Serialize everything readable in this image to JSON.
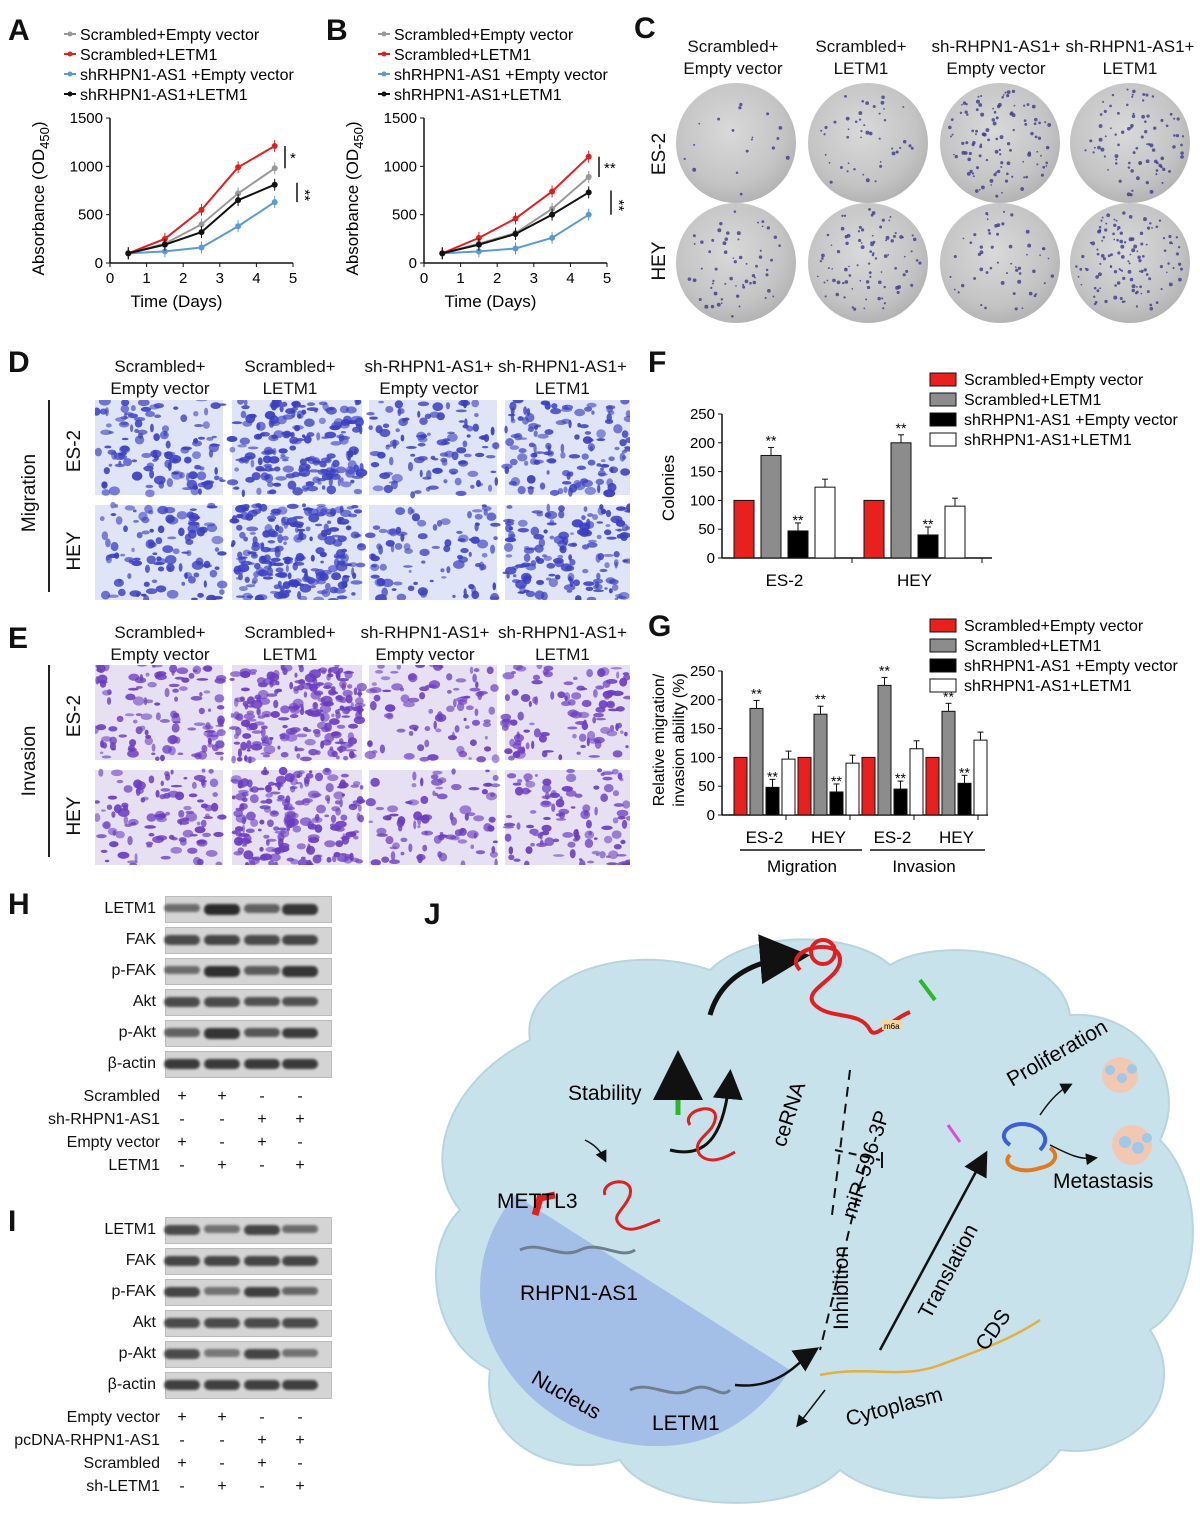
{
  "panel_labels": {
    "A": "A",
    "B": "B",
    "C": "C",
    "D": "D",
    "E": "E",
    "F": "F",
    "G": "G",
    "H": "H",
    "I": "I",
    "J": "J"
  },
  "groups": [
    "Scrambled+Empty vector",
    "Scrambled+LETM1",
    "shRHPN1-AS1 +Empty vector",
    "shRHPN1-AS1+LETM1"
  ],
  "colors": {
    "g1": "#e8201e",
    "g2": "#8c8c8c",
    "g3": "#000000",
    "g4": "#ffffff",
    "line1": "#999999",
    "line2": "#e02020",
    "line3": "#5b9bd5",
    "line4": "#111111"
  },
  "col_headers_C": [
    [
      "Scrambled+",
      "Empty vector"
    ],
    [
      "Scrambled+",
      "LETM1"
    ],
    [
      "sh-RHPN1-AS1+",
      "Empty vector"
    ],
    [
      "sh-RHPN1-AS1+",
      "LETM1"
    ]
  ],
  "col_headers_D": [
    [
      "Scrambled+",
      "Empty vector"
    ],
    [
      "Scrambled+",
      "LETM1"
    ],
    [
      "sh-RHPN1-AS1+",
      "Empty vector"
    ],
    [
      "sh-RHPN1-AS1+",
      "LETM1"
    ]
  ],
  "col_headers_E": [
    [
      "Scrambled+",
      "Empty vector"
    ],
    [
      "Scrambled+",
      "LETM1"
    ],
    [
      "sh-RHPN1-AS1+",
      "Empty vector"
    ],
    [
      "sh-RHPN1-AS1+",
      "LETM1"
    ]
  ],
  "row_labels": {
    "es2": "ES-2",
    "hey": "HEY",
    "migration": "Migration",
    "invasion": "Invasion"
  },
  "chart_data": [
    {
      "panel": "A",
      "type": "line",
      "xlabel": "Time (Days)",
      "ylabel": "Absorbance (OD450)",
      "xlim": [
        0,
        5
      ],
      "ylim": [
        0,
        1500
      ],
      "xticks": [
        0,
        1,
        2,
        3,
        4,
        5
      ],
      "yticks": [
        0,
        500,
        1000,
        1500
      ],
      "x": [
        0.5,
        1.5,
        2.5,
        3.5,
        4.5
      ],
      "series": [
        {
          "name": "Scrambled+Empty vector",
          "values": [
            100,
            200,
            400,
            720,
            980
          ]
        },
        {
          "name": "Scrambled+LETM1",
          "values": [
            100,
            250,
            550,
            990,
            1210
          ]
        },
        {
          "name": "shRHPN1-AS1 +Empty vector",
          "values": [
            100,
            120,
            160,
            380,
            630
          ]
        },
        {
          "name": "shRHPN1-AS1+LETM1",
          "values": [
            100,
            190,
            320,
            650,
            810
          ]
        }
      ],
      "significance": [
        "*",
        "**"
      ]
    },
    {
      "panel": "B",
      "type": "line",
      "xlabel": "Time (Days)",
      "ylabel": "Absorbance (OD450)",
      "xlim": [
        0,
        5
      ],
      "ylim": [
        0,
        1500
      ],
      "xticks": [
        0,
        1,
        2,
        3,
        4,
        5
      ],
      "yticks": [
        0,
        500,
        1000,
        1500
      ],
      "x": [
        0.5,
        1.5,
        2.5,
        3.5,
        4.5
      ],
      "series": [
        {
          "name": "Scrambled+Empty vector",
          "values": [
            100,
            200,
            310,
            560,
            890
          ]
        },
        {
          "name": "Scrambled+LETM1",
          "values": [
            100,
            260,
            460,
            740,
            1100
          ]
        },
        {
          "name": "shRHPN1-AS1 +Empty vector",
          "values": [
            100,
            120,
            150,
            260,
            500
          ]
        },
        {
          "name": "shRHPN1-AS1+LETM1",
          "values": [
            100,
            190,
            300,
            500,
            730
          ]
        }
      ],
      "significance": [
        "**",
        "**"
      ]
    },
    {
      "panel": "F",
      "type": "bar",
      "ylabel": "Colonies",
      "ylim": [
        0,
        250
      ],
      "yticks": [
        0,
        50,
        100,
        150,
        200,
        250
      ],
      "categories": [
        "ES-2",
        "HEY"
      ],
      "series": [
        {
          "name": "Scrambled+Empty vector",
          "values": [
            100,
            100
          ]
        },
        {
          "name": "Scrambled+LETM1",
          "values": [
            178,
            200
          ]
        },
        {
          "name": "shRHPN1-AS1 +Empty vector",
          "values": [
            47,
            40
          ]
        },
        {
          "name": "shRHPN1-AS1+LETM1",
          "values": [
            123,
            90
          ]
        }
      ],
      "marks": [
        "**",
        "**"
      ]
    },
    {
      "panel": "G",
      "type": "bar",
      "ylabel": "Relative migration/ invasion ability (%)",
      "ylim": [
        0,
        250
      ],
      "yticks": [
        0,
        50,
        100,
        150,
        200,
        250
      ],
      "categories": [
        "ES-2",
        "HEY",
        "ES-2",
        "HEY"
      ],
      "group_labels": [
        "Migration",
        "Invasion"
      ],
      "series": [
        {
          "name": "Scrambled+Empty vector",
          "values": [
            100,
            100,
            100,
            100
          ]
        },
        {
          "name": "Scrambled+LETM1",
          "values": [
            185,
            175,
            225,
            180
          ]
        },
        {
          "name": "shRHPN1-AS1 +Empty vector",
          "values": [
            48,
            40,
            45,
            55
          ]
        },
        {
          "name": "shRHPN1-AS1+LETM1",
          "values": [
            97,
            90,
            115,
            130
          ]
        }
      ],
      "marks": [
        "**",
        "**"
      ]
    }
  ],
  "blot_H": {
    "proteins": [
      "LETM1",
      "FAK",
      "p-FAK",
      "Akt",
      "p-Akt",
      "β-actin"
    ],
    "conditions": [
      {
        "name": "Scrambled",
        "signs": [
          "+",
          "+",
          "-",
          "-"
        ]
      },
      {
        "name": "sh-RHPN1-AS1",
        "signs": [
          "-",
          "-",
          "+",
          "+"
        ]
      },
      {
        "name": "Empty vector",
        "signs": [
          "+",
          "-",
          "+",
          "-"
        ]
      },
      {
        "name": "LETM1",
        "signs": [
          "-",
          "+",
          "-",
          "+"
        ]
      }
    ]
  },
  "blot_I": {
    "proteins": [
      "LETM1",
      "FAK",
      "p-FAK",
      "Akt",
      "p-Akt",
      "β-actin"
    ],
    "conditions": [
      {
        "name": "Empty vector",
        "signs": [
          "+",
          "+",
          "-",
          "-"
        ]
      },
      {
        "name": "pcDNA-RHPN1-AS1",
        "signs": [
          "-",
          "-",
          "+",
          "+"
        ]
      },
      {
        "name": "Scrambled",
        "signs": [
          "+",
          "-",
          "+",
          "-"
        ]
      },
      {
        "name": "sh-LETM1",
        "signs": [
          "-",
          "+",
          "-",
          "+"
        ]
      }
    ]
  },
  "diagram_J": {
    "stability": "Stability",
    "cerna": "ceRNA",
    "mirna": "miR-596-3P",
    "inhibition": "Inhibition",
    "translation": "Translation",
    "proliferation": "Proliferation",
    "metastasis": "Metastasis",
    "mettl3": "METTL3",
    "rhpn": "RHPN1-AS1",
    "nucleus": "Nucleus",
    "letm1": "LETM1",
    "cytoplasm": "Cytoplasm",
    "cds": "CDS",
    "m6a": "m6a"
  }
}
